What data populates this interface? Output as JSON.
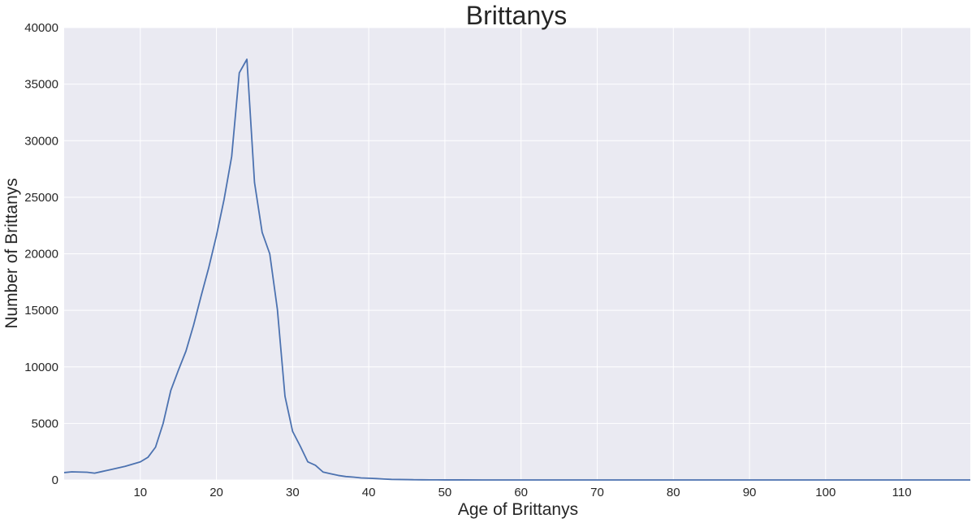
{
  "chart_data": {
    "type": "line",
    "title": "Brittanys",
    "xlabel": "Age of Brittanys",
    "ylabel": "Number of Brittanys",
    "xlim": [
      0,
      119
    ],
    "ylim": [
      0,
      40000
    ],
    "xticks": [
      10,
      20,
      30,
      40,
      50,
      60,
      70,
      80,
      90,
      100,
      110
    ],
    "yticks": [
      0,
      5000,
      10000,
      15000,
      20000,
      25000,
      30000,
      35000,
      40000
    ],
    "grid": true,
    "colors": {
      "background": "#eaeaf2",
      "grid": "#ffffff",
      "line": "#4c72b0",
      "text": "#262626"
    },
    "series": [
      {
        "x": [
          0,
          1,
          2,
          3,
          4,
          5,
          6,
          7,
          8,
          9,
          10,
          11,
          12,
          13,
          14,
          15,
          16,
          17,
          18,
          19,
          20,
          21,
          22,
          23,
          24,
          25,
          26,
          27,
          28,
          29,
          30,
          31,
          32,
          33,
          34,
          35,
          36,
          37,
          38,
          39,
          40,
          41,
          42,
          43,
          44,
          45,
          46,
          47,
          48,
          49,
          50,
          52,
          55,
          60,
          65,
          70,
          80,
          90,
          100,
          110,
          119
        ],
        "y": [
          650,
          720,
          700,
          680,
          600,
          750,
          900,
          1050,
          1200,
          1400,
          1600,
          2000,
          2900,
          5000,
          7900,
          9700,
          11400,
          13700,
          16300,
          18800,
          21600,
          24800,
          28600,
          36000,
          37200,
          26300,
          21900,
          20000,
          15100,
          7400,
          4300,
          3000,
          1600,
          1300,
          700,
          550,
          400,
          300,
          250,
          180,
          150,
          120,
          80,
          50,
          40,
          30,
          20,
          15,
          10,
          8,
          5,
          3,
          2,
          1,
          0,
          0,
          0,
          0,
          0,
          0,
          0
        ]
      }
    ]
  }
}
